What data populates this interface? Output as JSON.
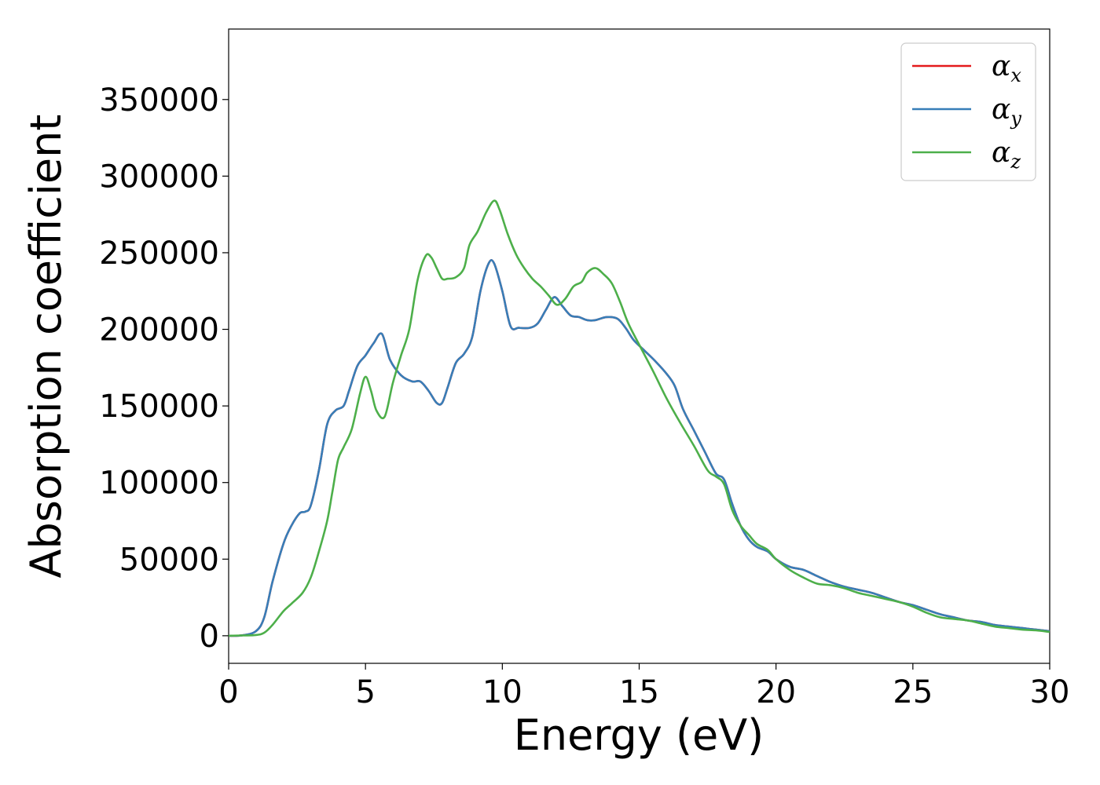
{
  "chart_data": {
    "type": "line",
    "xlabel": "Energy (eV)",
    "ylabel": "Absorption coefficient",
    "xlim": [
      0,
      30
    ],
    "ylim": [
      -18000,
      396000
    ],
    "xticks": [
      0,
      5,
      10,
      15,
      20,
      25,
      30
    ],
    "yticks": [
      0,
      50000,
      100000,
      150000,
      200000,
      250000,
      300000,
      350000
    ],
    "grid": false,
    "legend_position": "top-right",
    "series": [
      {
        "name": "α",
        "subscript": "x",
        "color": "#e41a1c",
        "x": [
          0,
          0.5,
          1.0,
          1.3,
          1.6,
          2.0,
          2.3,
          2.6,
          2.8,
          3.0,
          3.3,
          3.6,
          3.9,
          4.2,
          4.4,
          4.7,
          5.0,
          5.3,
          5.6,
          5.9,
          6.3,
          6.7,
          7.0,
          7.3,
          7.6,
          7.8,
          8.0,
          8.3,
          8.6,
          8.9,
          9.2,
          9.5,
          9.7,
          10.0,
          10.3,
          10.6,
          11.0,
          11.3,
          11.6,
          11.9,
          12.2,
          12.5,
          12.8,
          13.1,
          13.4,
          13.8,
          14.2,
          14.5,
          14.8,
          15.2,
          15.6,
          16.0,
          16.3,
          16.6,
          17.0,
          17.4,
          17.8,
          18.1,
          18.4,
          18.7,
          19.0,
          19.3,
          19.7,
          20.0,
          20.5,
          21.0,
          21.5,
          22.0,
          22.5,
          23.0,
          23.5,
          24.0,
          24.5,
          25.0,
          25.5,
          26.0,
          26.5,
          27.0,
          27.5,
          28.0,
          28.5,
          29.0,
          29.5,
          30.0
        ],
        "y": [
          0,
          300,
          3000,
          12000,
          35000,
          60000,
          72000,
          80000,
          81000,
          85000,
          108000,
          138000,
          147000,
          150000,
          160000,
          176000,
          183000,
          191000,
          197000,
          180000,
          170000,
          166000,
          166000,
          160000,
          152000,
          152000,
          162000,
          178000,
          184000,
          195000,
          225000,
          243000,
          243000,
          225000,
          202000,
          201000,
          201000,
          204000,
          213000,
          221000,
          215000,
          209000,
          208000,
          206000,
          206000,
          208000,
          207000,
          201000,
          193000,
          186000,
          179000,
          171000,
          163000,
          148000,
          134000,
          120000,
          106000,
          102000,
          86000,
          72000,
          63000,
          58000,
          55000,
          50000,
          45000,
          43000,
          39000,
          35000,
          32000,
          30000,
          28000,
          25000,
          22000,
          20000,
          17000,
          14000,
          12000,
          10000,
          9000,
          7000,
          6000,
          5000,
          4000,
          3000
        ]
      },
      {
        "name": "α",
        "subscript": "y",
        "color": "#377eb8",
        "x": [
          0,
          0.5,
          1.0,
          1.3,
          1.6,
          2.0,
          2.3,
          2.6,
          2.8,
          3.0,
          3.3,
          3.6,
          3.9,
          4.2,
          4.4,
          4.7,
          5.0,
          5.3,
          5.6,
          5.9,
          6.3,
          6.7,
          7.0,
          7.3,
          7.6,
          7.8,
          8.0,
          8.3,
          8.6,
          8.9,
          9.2,
          9.5,
          9.7,
          10.0,
          10.3,
          10.6,
          11.0,
          11.3,
          11.6,
          11.9,
          12.2,
          12.5,
          12.8,
          13.1,
          13.4,
          13.8,
          14.2,
          14.5,
          14.8,
          15.2,
          15.6,
          16.0,
          16.3,
          16.6,
          17.0,
          17.4,
          17.8,
          18.1,
          18.4,
          18.7,
          19.0,
          19.3,
          19.7,
          20.0,
          20.5,
          21.0,
          21.5,
          22.0,
          22.5,
          23.0,
          23.5,
          24.0,
          24.5,
          25.0,
          25.5,
          26.0,
          26.5,
          27.0,
          27.5,
          28.0,
          28.5,
          29.0,
          29.5,
          30.0
        ],
        "y": [
          0,
          300,
          3000,
          12000,
          35000,
          60000,
          72000,
          80000,
          81000,
          85000,
          108000,
          138000,
          147000,
          150000,
          160000,
          176000,
          183000,
          191000,
          197000,
          180000,
          170000,
          166000,
          166000,
          160000,
          152000,
          152000,
          162000,
          178000,
          184000,
          195000,
          225000,
          243000,
          243000,
          225000,
          202000,
          201000,
          201000,
          204000,
          213000,
          221000,
          215000,
          209000,
          208000,
          206000,
          206000,
          208000,
          207000,
          201000,
          193000,
          186000,
          179000,
          171000,
          163000,
          148000,
          134000,
          120000,
          106000,
          102000,
          86000,
          72000,
          63000,
          58000,
          55000,
          50000,
          45000,
          43000,
          39000,
          35000,
          32000,
          30000,
          28000,
          25000,
          22000,
          20000,
          17000,
          14000,
          12000,
          10000,
          9000,
          7000,
          6000,
          5000,
          4000,
          3000
        ]
      },
      {
        "name": "α",
        "subscript": "z",
        "color": "#4daf4a",
        "x": [
          0,
          0.5,
          1.0,
          1.3,
          1.6,
          2.0,
          2.3,
          2.7,
          3.0,
          3.3,
          3.6,
          3.8,
          4.0,
          4.2,
          4.5,
          4.8,
          5.0,
          5.2,
          5.4,
          5.7,
          6.0,
          6.3,
          6.6,
          6.9,
          7.2,
          7.4,
          7.6,
          7.8,
          8.0,
          8.3,
          8.6,
          8.8,
          9.1,
          9.4,
          9.7,
          9.9,
          10.2,
          10.5,
          10.8,
          11.1,
          11.4,
          11.7,
          12.0,
          12.3,
          12.6,
          12.9,
          13.1,
          13.4,
          13.7,
          14.0,
          14.3,
          14.6,
          15.0,
          15.5,
          16.0,
          16.5,
          17.0,
          17.5,
          17.8,
          18.1,
          18.4,
          18.7,
          19.0,
          19.3,
          19.7,
          20.0,
          20.5,
          21.0,
          21.5,
          22.0,
          22.5,
          23.0,
          23.5,
          24.0,
          24.5,
          25.0,
          25.5,
          26.0,
          26.5,
          27.0,
          27.5,
          28.0,
          28.5,
          29.0,
          29.5,
          30.0
        ],
        "y": [
          0,
          200,
          500,
          2000,
          7000,
          16000,
          21000,
          28000,
          38000,
          55000,
          75000,
          95000,
          115000,
          123000,
          135000,
          158000,
          169000,
          160000,
          147000,
          143000,
          165000,
          183000,
          200000,
          232000,
          248000,
          247000,
          240000,
          233000,
          233000,
          234000,
          240000,
          255000,
          264000,
          276000,
          284000,
          278000,
          262000,
          249000,
          240000,
          233000,
          228000,
          222000,
          216000,
          220000,
          228000,
          231000,
          237000,
          240000,
          236000,
          230000,
          218000,
          204000,
          190000,
          173000,
          155000,
          139000,
          124000,
          108000,
          104000,
          99000,
          82000,
          72000,
          66000,
          60000,
          56000,
          50000,
          43000,
          38000,
          34000,
          33000,
          31000,
          28000,
          26000,
          24000,
          22000,
          19000,
          15000,
          12000,
          11000,
          10000,
          8000,
          6000,
          5000,
          4000,
          3500,
          2500
        ]
      }
    ]
  }
}
